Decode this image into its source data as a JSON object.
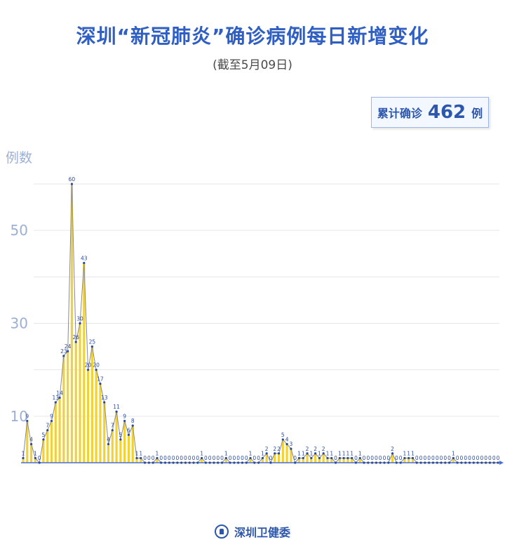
{
  "title": "深圳“新冠肺炎”确诊病例每日新增变化",
  "subtitle": "(截至5月09日)",
  "total": {
    "label": "累计确诊",
    "value": "462",
    "unit": "例"
  },
  "footer": {
    "org": "深圳卫健委",
    "logo_icon": "health-commission-logo-icon"
  },
  "colors": {
    "bar": "#f2d233",
    "line": "#8a8a8a",
    "point": "#2a4a9a",
    "axis": "#4a6fd0",
    "title": "#2f5fc2",
    "grid": "#e6e6e6",
    "tick": "#9cb0d6"
  },
  "chart_data": {
    "type": "bar",
    "overlay": "line",
    "ylabel": "例数",
    "ylim": [
      0,
      60
    ],
    "yticks": [
      10,
      30,
      50
    ],
    "grid": true,
    "values": [
      1,
      9,
      4,
      1,
      0,
      5,
      7,
      9,
      13,
      14,
      23,
      24,
      60,
      26,
      30,
      43,
      20,
      25,
      20,
      17,
      13,
      4,
      7,
      11,
      5,
      9,
      6,
      8,
      1,
      1,
      0,
      0,
      0,
      1,
      0,
      0,
      0,
      0,
      0,
      0,
      0,
      0,
      0,
      0,
      1,
      0,
      0,
      0,
      0,
      0,
      1,
      0,
      0,
      0,
      0,
      0,
      1,
      0,
      0,
      1,
      2,
      0,
      2,
      2,
      5,
      4,
      3,
      0,
      1,
      1,
      2,
      1,
      2,
      1,
      2,
      1,
      1,
      0,
      1,
      1,
      1,
      1,
      0,
      1,
      0,
      0,
      0,
      0,
      0,
      0,
      0,
      2,
      0,
      0,
      1,
      1,
      1,
      0,
      0,
      0,
      0,
      0,
      0,
      0,
      0,
      0,
      1,
      0,
      0,
      0,
      0,
      0,
      0,
      0,
      0,
      0,
      0,
      0
    ]
  }
}
